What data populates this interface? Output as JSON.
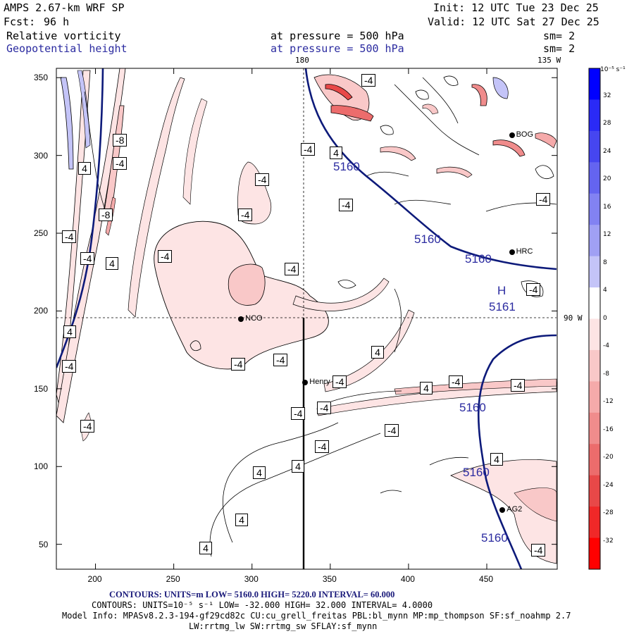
{
  "header": {
    "model": "AMPS 2.67-km WRF SP",
    "init": "Init: 12 UTC Tue 23 Dec 25",
    "fcst_label": "Fcst:",
    "fcst_value": "96 h",
    "valid": "Valid: 12 UTC Sat 27 Dec 25",
    "field1": "Relative vorticity",
    "field1_pressure": "at pressure =  500 hPa",
    "field1_sm": "sm= 2",
    "field2": "Geopotential height",
    "field2_pressure": "at pressure =  500 hPa",
    "field2_sm": "sm= 2"
  },
  "map": {
    "lon_180": "180",
    "lon_135": "135 W",
    "lon_90": "90 W",
    "high_symbol": "H",
    "high_value": "5161",
    "x_ticks": [
      200,
      250,
      300,
      350,
      400,
      450
    ],
    "y_ticks": [
      50,
      100,
      150,
      200,
      250,
      300,
      350
    ],
    "x_range": [
      175,
      495
    ],
    "y_range": [
      34,
      356
    ],
    "stations": [
      {
        "name": "NCO",
        "x": 293,
        "y": 195
      },
      {
        "name": "Henry",
        "x": 334,
        "y": 154
      },
      {
        "name": "HRC",
        "x": 466,
        "y": 238
      },
      {
        "name": "AG2",
        "x": 460,
        "y": 72
      },
      {
        "name": "BOG",
        "x": 466,
        "y": 313
      }
    ],
    "height_labels": [
      "5160",
      "5160",
      "5160",
      "5160",
      "5160",
      "5160"
    ],
    "vort_labels": [
      "-8",
      "-4",
      "4",
      "-8",
      "-4",
      "-4",
      "4",
      "-4",
      "-4",
      "-4",
      "-4",
      "-4",
      "-4",
      "-4",
      "-4",
      "-4",
      "4",
      "-4",
      "4",
      "-4",
      "-4",
      "-4",
      "-4",
      "-4",
      "-4",
      "4",
      "4",
      "4",
      "4",
      "4",
      "-4",
      "-4",
      "-4",
      "-4",
      "4",
      "-4",
      "4",
      "-4"
    ]
  },
  "colorbar": {
    "unit": "10⁻⁵ s⁻¹",
    "levels": [
      "32",
      "28",
      "24",
      "20",
      "16",
      "12",
      "8",
      "4",
      "0",
      "-4",
      "-8",
      "-12",
      "-16",
      "-20",
      "-24",
      "-28",
      "-32"
    ],
    "colors": [
      "#0000ff",
      "#2a2af6",
      "#4646f0",
      "#6464f0",
      "#8282f2",
      "#a0a0f4",
      "#c4c4f8",
      "#ffffff",
      "#ffffff",
      "#fde4e4",
      "#f9c8c8",
      "#f5aaaa",
      "#f08c8c",
      "#ec6c6c",
      "#e84848",
      "#f02828",
      "#ff0000"
    ]
  },
  "footer": {
    "line1": "CONTOURS:  UNITS=m  LOW=   5160.0        HIGH=   5220.0       INTERVAL=    60.000",
    "line2": "CONTOURS:  UNITS=10⁻⁵ s⁻¹  LOW=  -32.000       HIGH=  32.000      INTERVAL=   4.0000",
    "line3": "Model Info: MPASv8.2.3-194-gf29cd82c CU:cu_grell_freitas PBL:bl_mynn MP:mp_thompson SF:sf_noahmp 2.7",
    "line4": "LW:rrtmg_lw SW:rrtmg_sw SFLAY:sf_mynn"
  }
}
